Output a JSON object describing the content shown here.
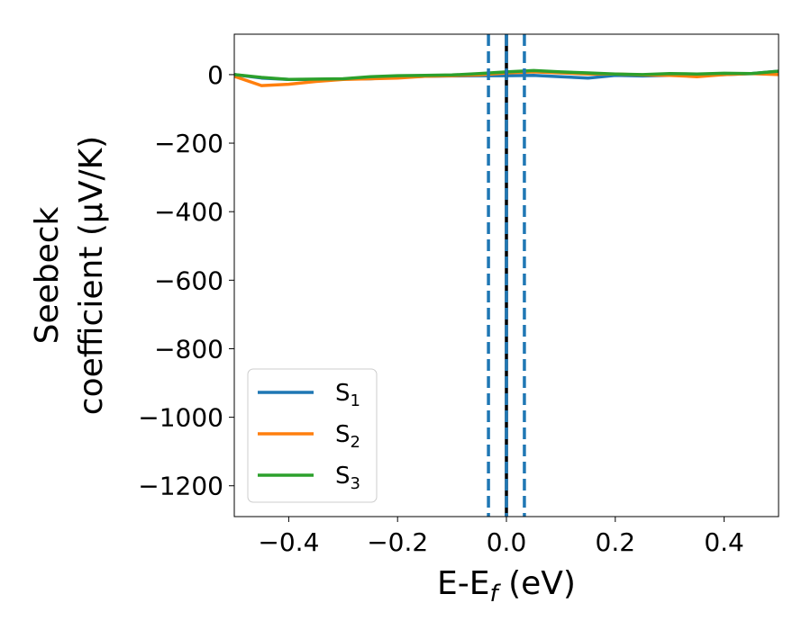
{
  "chart_data": {
    "type": "line",
    "xlabel": {
      "main": "E-E",
      "sub": "f",
      "suffix": " (eV)"
    },
    "ylabel": {
      "line1": "Seebeck",
      "line2": "coefficient  (μV/K)"
    },
    "xlim": [
      -0.5,
      0.5
    ],
    "ylim": [
      -1290,
      118
    ],
    "xticks": [
      -0.4,
      -0.2,
      0.0,
      0.2,
      0.4
    ],
    "xtick_labels": [
      "−0.4",
      "−0.2",
      "0.0",
      "0.2",
      "0.4"
    ],
    "yticks": [
      0,
      -200,
      -400,
      -600,
      -800,
      -1000,
      -1200
    ],
    "ytick_labels": [
      "0",
      "−200",
      "−400",
      "−600",
      "−800",
      "−1000",
      "−1200"
    ],
    "grid": false,
    "legend_position": "lower-left",
    "vlines": [
      {
        "x": 0.0,
        "color": "#000000",
        "style": "solid"
      },
      {
        "x": 0.0,
        "color": "#1f77b4",
        "style": "dashed"
      },
      {
        "x": -0.033,
        "color": "#1f77b4",
        "style": "dashed"
      },
      {
        "x": 0.033,
        "color": "#1f77b4",
        "style": "dashed"
      }
    ],
    "series": [
      {
        "name": "S1",
        "label_main": "S",
        "label_sub": "1",
        "color": "#1f77b4",
        "x": [
          -0.5,
          -0.45,
          -0.4,
          -0.35,
          -0.3,
          -0.25,
          -0.2,
          -0.15,
          -0.1,
          -0.05,
          0.0,
          0.05,
          0.1,
          0.15,
          0.2,
          0.25,
          0.3,
          0.35,
          0.4,
          0.45,
          0.5
        ],
        "y": [
          0,
          -10,
          -14,
          -14,
          -13,
          -12,
          -8,
          -5,
          -4,
          -3,
          -3,
          -2,
          -6,
          -10,
          -2,
          -4,
          -2,
          -2,
          0,
          3,
          10
        ]
      },
      {
        "name": "S2",
        "label_main": "S",
        "label_sub": "2",
        "color": "#ff7f0e",
        "x": [
          -0.5,
          -0.45,
          -0.4,
          -0.35,
          -0.3,
          -0.25,
          -0.2,
          -0.15,
          -0.1,
          -0.05,
          0.0,
          0.05,
          0.1,
          0.15,
          0.2,
          0.25,
          0.3,
          0.35,
          0.4,
          0.45,
          0.5
        ],
        "y": [
          -5,
          -32,
          -28,
          -20,
          -14,
          -12,
          -10,
          -5,
          -3,
          -1,
          5,
          8,
          5,
          2,
          2,
          -1,
          -2,
          -6,
          0,
          3,
          0
        ]
      },
      {
        "name": "S3",
        "label_main": "S",
        "label_sub": "3",
        "color": "#2ca02c",
        "x": [
          -0.5,
          -0.45,
          -0.4,
          -0.35,
          -0.3,
          -0.25,
          -0.2,
          -0.15,
          -0.1,
          -0.05,
          0.0,
          0.05,
          0.1,
          0.15,
          0.2,
          0.25,
          0.3,
          0.35,
          0.4,
          0.45,
          0.5
        ],
        "y": [
          0,
          -8,
          -14,
          -13,
          -12,
          -6,
          -3,
          -2,
          -1,
          3,
          8,
          12,
          8,
          5,
          2,
          0,
          3,
          2,
          4,
          3,
          10
        ]
      }
    ]
  }
}
